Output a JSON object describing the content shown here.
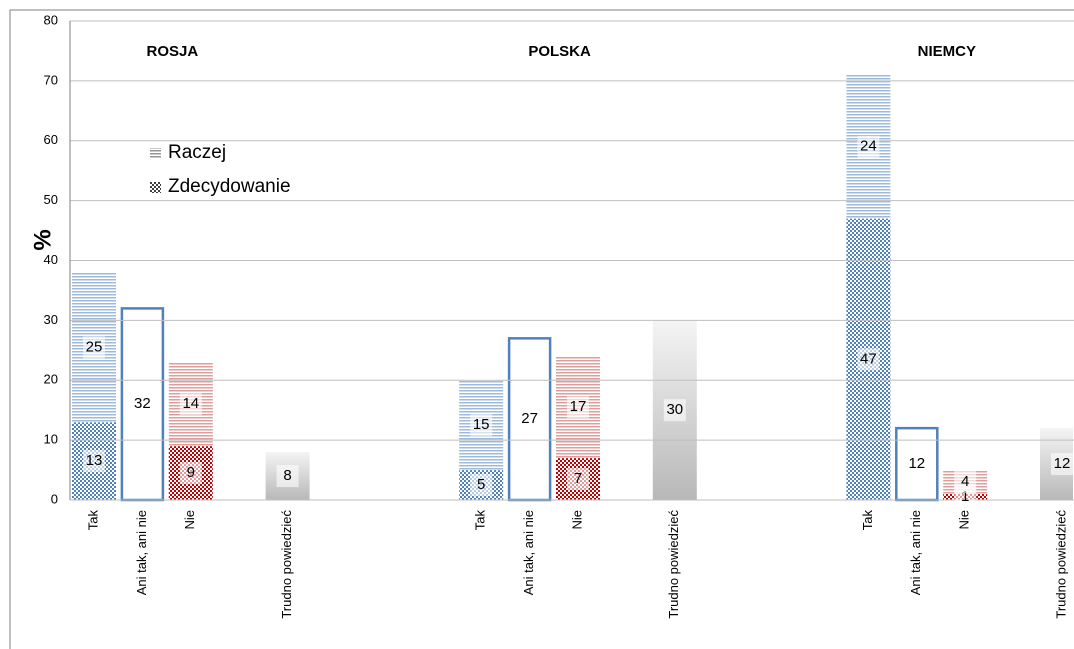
{
  "chart_data": {
    "type": "grouped-stacked-bar",
    "ylabel": "%",
    "groups": [
      "ROSJA",
      "POLSKA",
      "NIEMCY"
    ],
    "categories": [
      "Tak",
      "Ani tak, ani nie",
      "Nie",
      "Trudno powiedzieć",
      "Tak",
      "Ani tak, ani nie",
      "Nie",
      "Trudno powiedzieć",
      "Tak",
      "Ani tak, ani nie",
      "Nie",
      "Trudno powiedzieć"
    ],
    "category_colors": [
      "#4f81bd",
      "#4f81bd",
      "#c0504d",
      "#a6a6a6",
      "#4f81bd",
      "#4f81bd",
      "#c0504d",
      "#a6a6a6",
      "#4f81bd",
      "#4f81bd",
      "#c0504d",
      "#a6a6a6"
    ],
    "series": [
      {
        "name": "Raczej",
        "pattern": "lines",
        "values": [
          25,
          null,
          14,
          null,
          15,
          null,
          17,
          null,
          24,
          null,
          4,
          null
        ]
      },
      {
        "name": "Zdecydowanie",
        "pattern": "checker",
        "values": [
          13,
          null,
          9,
          null,
          5,
          null,
          7,
          null,
          47,
          null,
          1,
          null
        ]
      }
    ],
    "values": [
      null,
      32,
      null,
      8,
      null,
      27,
      null,
      30,
      null,
      12,
      null,
      12
    ],
    "ylim": [
      0,
      80
    ],
    "yticks": [
      0,
      10,
      20,
      30,
      40,
      50,
      60,
      70,
      80
    ],
    "grid": true
  }
}
